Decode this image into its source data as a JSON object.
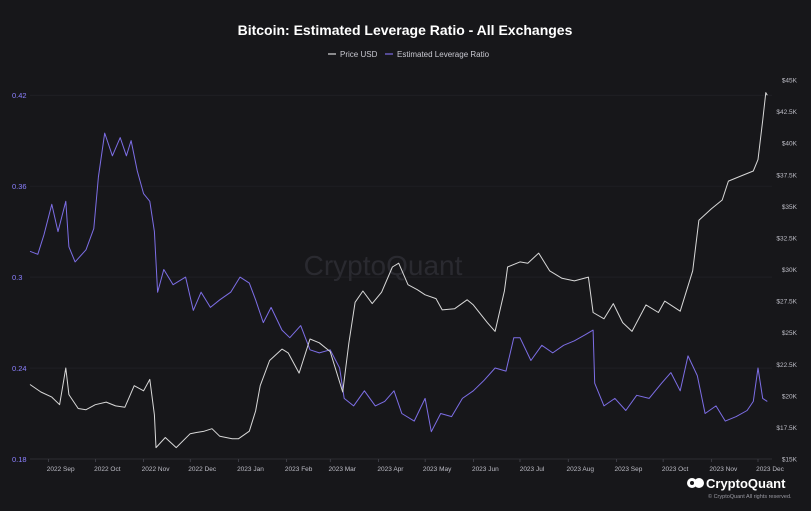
{
  "chart_data": {
    "type": "line",
    "title": "Bitcoin: Estimated Leverage Ratio - All Exchanges",
    "legend": [
      "Price USD",
      "Estimated Leverage Ratio"
    ],
    "legend_placement": "top-center",
    "grid": true,
    "x_ticks": [
      "2022 Sep",
      "2022 Oct",
      "2022 Nov",
      "2022 Dec",
      "2023 Jan",
      "2023 Feb",
      "2023 Mar",
      "2023 Apr",
      "2023 May",
      "2023 Jun",
      "2023 Jul",
      "2023 Aug",
      "2023 Sep",
      "2023 Oct",
      "2023 Nov",
      "2023 Dec"
    ],
    "left_axis": {
      "ticks": [
        "0.18",
        "0.24",
        "0.3",
        "0.36",
        "0.42"
      ],
      "ylim": [
        0.18,
        0.43
      ]
    },
    "right_axis": {
      "ticks": [
        "$15K",
        "$17.5K",
        "$20K",
        "$22.5K",
        "$25K",
        "$27.5K",
        "$30K",
        "$32.5K",
        "$35K",
        "$37.5K",
        "$40K",
        "$42.5K",
        "$45K"
      ],
      "ylim": [
        15000,
        45000
      ]
    },
    "colors": {
      "price": "#d8d8d8",
      "leverage": "#7d6ee6"
    },
    "series": [
      {
        "name": "Price USD",
        "axis": "right",
        "points": [
          [
            "2022-08-20",
            20900
          ],
          [
            "2022-08-27",
            20300
          ],
          [
            "2022-09-03",
            19900
          ],
          [
            "2022-09-08",
            19300
          ],
          [
            "2022-09-12",
            22200
          ],
          [
            "2022-09-14",
            20100
          ],
          [
            "2022-09-20",
            19000
          ],
          [
            "2022-09-25",
            18900
          ],
          [
            "2022-10-01",
            19300
          ],
          [
            "2022-10-08",
            19500
          ],
          [
            "2022-10-14",
            19200
          ],
          [
            "2022-10-20",
            19100
          ],
          [
            "2022-10-26",
            20800
          ],
          [
            "2022-11-01",
            20400
          ],
          [
            "2022-11-05",
            21300
          ],
          [
            "2022-11-08",
            18500
          ],
          [
            "2022-11-09",
            15900
          ],
          [
            "2022-11-15",
            16700
          ],
          [
            "2022-11-22",
            15900
          ],
          [
            "2022-12-01",
            17000
          ],
          [
            "2022-12-05",
            17100
          ],
          [
            "2022-12-10",
            17200
          ],
          [
            "2022-12-15",
            17400
          ],
          [
            "2022-12-20",
            16800
          ],
          [
            "2022-12-28",
            16600
          ],
          [
            "2023-01-01",
            16600
          ],
          [
            "2023-01-08",
            17200
          ],
          [
            "2023-01-12",
            18800
          ],
          [
            "2023-01-15",
            20800
          ],
          [
            "2023-01-21",
            22800
          ],
          [
            "2023-01-29",
            23700
          ],
          [
            "2023-02-02",
            23400
          ],
          [
            "2023-02-09",
            21800
          ],
          [
            "2023-02-16",
            24500
          ],
          [
            "2023-02-22",
            24200
          ],
          [
            "2023-03-01",
            23500
          ],
          [
            "2023-03-09",
            20300
          ],
          [
            "2023-03-13",
            24200
          ],
          [
            "2023-03-17",
            27400
          ],
          [
            "2023-03-22",
            28300
          ],
          [
            "2023-03-28",
            27300
          ],
          [
            "2023-04-03",
            28200
          ],
          [
            "2023-04-10",
            30200
          ],
          [
            "2023-04-14",
            30500
          ],
          [
            "2023-04-20",
            28800
          ],
          [
            "2023-04-26",
            28400
          ],
          [
            "2023-05-01",
            28000
          ],
          [
            "2023-05-08",
            27700
          ],
          [
            "2023-05-12",
            26800
          ],
          [
            "2023-05-20",
            26900
          ],
          [
            "2023-05-28",
            27600
          ],
          [
            "2023-06-01",
            27200
          ],
          [
            "2023-06-10",
            25800
          ],
          [
            "2023-06-15",
            25100
          ],
          [
            "2023-06-21",
            28300
          ],
          [
            "2023-06-23",
            30200
          ],
          [
            "2023-07-01",
            30600
          ],
          [
            "2023-07-06",
            30500
          ],
          [
            "2023-07-13",
            31300
          ],
          [
            "2023-07-20",
            29900
          ],
          [
            "2023-07-28",
            29300
          ],
          [
            "2023-08-05",
            29100
          ],
          [
            "2023-08-14",
            29400
          ],
          [
            "2023-08-17",
            26600
          ],
          [
            "2023-08-24",
            26100
          ],
          [
            "2023-08-30",
            27300
          ],
          [
            "2023-09-05",
            25800
          ],
          [
            "2023-09-11",
            25100
          ],
          [
            "2023-09-20",
            27200
          ],
          [
            "2023-09-28",
            26600
          ],
          [
            "2023-10-02",
            27500
          ],
          [
            "2023-10-12",
            26700
          ],
          [
            "2023-10-20",
            29900
          ],
          [
            "2023-10-24",
            33900
          ],
          [
            "2023-11-01",
            34800
          ],
          [
            "2023-11-08",
            35500
          ],
          [
            "2023-11-12",
            37000
          ],
          [
            "2023-11-20",
            37400
          ],
          [
            "2023-11-28",
            37800
          ],
          [
            "2023-12-01",
            38700
          ],
          [
            "2023-12-04",
            41800
          ],
          [
            "2023-12-06",
            44000
          ],
          [
            "2023-12-07",
            43800
          ]
        ]
      },
      {
        "name": "Estimated Leverage Ratio",
        "axis": "left",
        "points": [
          [
            "2022-08-20",
            0.317
          ],
          [
            "2022-08-25",
            0.315
          ],
          [
            "2022-08-29",
            0.328
          ],
          [
            "2022-09-03",
            0.348
          ],
          [
            "2022-09-07",
            0.33
          ],
          [
            "2022-09-12",
            0.35
          ],
          [
            "2022-09-14",
            0.32
          ],
          [
            "2022-09-18",
            0.31
          ],
          [
            "2022-09-25",
            0.318
          ],
          [
            "2022-09-30",
            0.332
          ],
          [
            "2022-10-03",
            0.366
          ],
          [
            "2022-10-07",
            0.395
          ],
          [
            "2022-10-12",
            0.38
          ],
          [
            "2022-10-17",
            0.392
          ],
          [
            "2022-10-21",
            0.38
          ],
          [
            "2022-10-24",
            0.39
          ],
          [
            "2022-10-28",
            0.37
          ],
          [
            "2022-11-01",
            0.355
          ],
          [
            "2022-11-05",
            0.35
          ],
          [
            "2022-11-08",
            0.33
          ],
          [
            "2022-11-10",
            0.29
          ],
          [
            "2022-11-14",
            0.305
          ],
          [
            "2022-11-20",
            0.295
          ],
          [
            "2022-11-28",
            0.3
          ],
          [
            "2022-12-03",
            0.278
          ],
          [
            "2022-12-08",
            0.29
          ],
          [
            "2022-12-14",
            0.28
          ],
          [
            "2022-12-20",
            0.285
          ],
          [
            "2022-12-27",
            0.29
          ],
          [
            "2023-01-02",
            0.3
          ],
          [
            "2023-01-08",
            0.296
          ],
          [
            "2023-01-12",
            0.285
          ],
          [
            "2023-01-17",
            0.27
          ],
          [
            "2023-01-22",
            0.28
          ],
          [
            "2023-01-29",
            0.265
          ],
          [
            "2023-02-03",
            0.26
          ],
          [
            "2023-02-10",
            0.268
          ],
          [
            "2023-02-16",
            0.252
          ],
          [
            "2023-02-22",
            0.25
          ],
          [
            "2023-03-01",
            0.252
          ],
          [
            "2023-03-07",
            0.24
          ],
          [
            "2023-03-10",
            0.22
          ],
          [
            "2023-03-16",
            0.215
          ],
          [
            "2023-03-23",
            0.225
          ],
          [
            "2023-03-30",
            0.215
          ],
          [
            "2023-04-05",
            0.218
          ],
          [
            "2023-04-11",
            0.225
          ],
          [
            "2023-04-16",
            0.21
          ],
          [
            "2023-04-24",
            0.205
          ],
          [
            "2023-05-01",
            0.22
          ],
          [
            "2023-05-05",
            0.198
          ],
          [
            "2023-05-11",
            0.21
          ],
          [
            "2023-05-18",
            0.208
          ],
          [
            "2023-05-25",
            0.22
          ],
          [
            "2023-06-01",
            0.225
          ],
          [
            "2023-06-08",
            0.232
          ],
          [
            "2023-06-15",
            0.24
          ],
          [
            "2023-06-22",
            0.238
          ],
          [
            "2023-06-27",
            0.26
          ],
          [
            "2023-07-01",
            0.26
          ],
          [
            "2023-07-08",
            0.245
          ],
          [
            "2023-07-15",
            0.255
          ],
          [
            "2023-07-22",
            0.25
          ],
          [
            "2023-07-29",
            0.255
          ],
          [
            "2023-08-05",
            0.258
          ],
          [
            "2023-08-12",
            0.262
          ],
          [
            "2023-08-17",
            0.265
          ],
          [
            "2023-08-18",
            0.23
          ],
          [
            "2023-08-24",
            0.215
          ],
          [
            "2023-08-31",
            0.22
          ],
          [
            "2023-09-07",
            0.212
          ],
          [
            "2023-09-14",
            0.222
          ],
          [
            "2023-09-22",
            0.22
          ],
          [
            "2023-09-30",
            0.23
          ],
          [
            "2023-10-06",
            0.237
          ],
          [
            "2023-10-12",
            0.225
          ],
          [
            "2023-10-17",
            0.248
          ],
          [
            "2023-10-23",
            0.235
          ],
          [
            "2023-10-28",
            0.21
          ],
          [
            "2023-11-04",
            0.215
          ],
          [
            "2023-11-10",
            0.205
          ],
          [
            "2023-11-17",
            0.208
          ],
          [
            "2023-11-24",
            0.212
          ],
          [
            "2023-11-28",
            0.218
          ],
          [
            "2023-12-01",
            0.24
          ],
          [
            "2023-12-04",
            0.22
          ],
          [
            "2023-12-07",
            0.218
          ]
        ]
      }
    ]
  },
  "watermark": "CryptoQuant",
  "brand": {
    "name": "CryptoQuant",
    "rights": "© CryptoQuant All rights reserved."
  }
}
